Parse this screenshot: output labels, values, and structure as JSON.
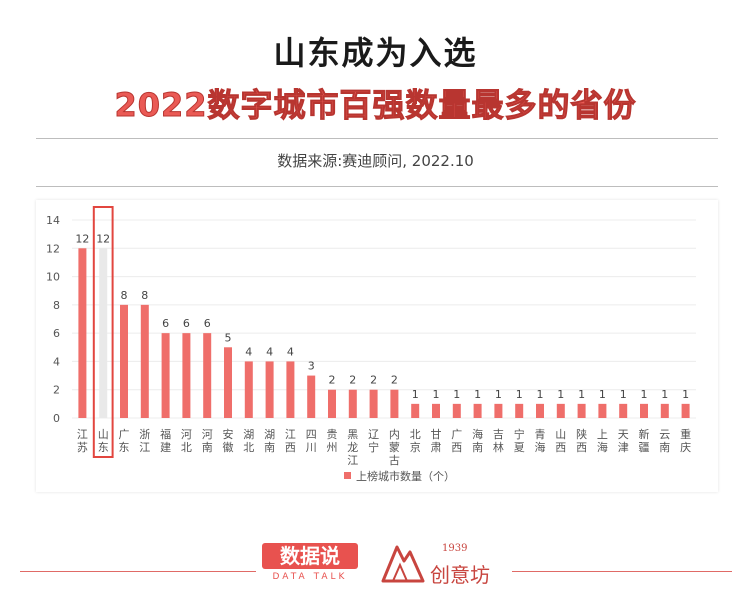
{
  "header": {
    "title_line1": "山东成为入选",
    "title_line2": "2022数字城市百强数量最多的省份",
    "source": "数据来源:赛迪顾问, 2022.10"
  },
  "colors": {
    "bar": "#ef6e6a",
    "highlight_bar": "#e9e9e9",
    "highlight_box": "#e2463f",
    "title_accent": "#ea5a55"
  },
  "chart_data": {
    "type": "bar",
    "categories": [
      "江苏",
      "山东",
      "广东",
      "浙江",
      "福建",
      "河北",
      "河南",
      "安徽",
      "湖北",
      "湖南",
      "江西",
      "四川",
      "贵州",
      "黑龙江",
      "辽宁",
      "内蒙古",
      "北京",
      "甘肃",
      "广西",
      "海南",
      "吉林",
      "宁夏",
      "青海",
      "山西",
      "陕西",
      "上海",
      "天津",
      "新疆",
      "云南",
      "重庆"
    ],
    "series": [
      {
        "name": "上榜城市数量（个）",
        "values": [
          12,
          12,
          8,
          8,
          6,
          6,
          6,
          5,
          4,
          4,
          4,
          3,
          2,
          2,
          2,
          2,
          1,
          1,
          1,
          1,
          1,
          1,
          1,
          1,
          1,
          1,
          1,
          1,
          1,
          1
        ]
      }
    ],
    "ylim": [
      0,
      14
    ],
    "yticks": [
      "0",
      "2",
      "4",
      "6",
      "8",
      "10",
      "12",
      "14"
    ],
    "grid": true,
    "legend_position": "bottom",
    "highlight_category": "山东"
  },
  "footer": {
    "logo1_main": "数据说",
    "logo1_sub": "DATA TALK",
    "logo2_year": "1939",
    "logo2_name": "创意坊"
  }
}
